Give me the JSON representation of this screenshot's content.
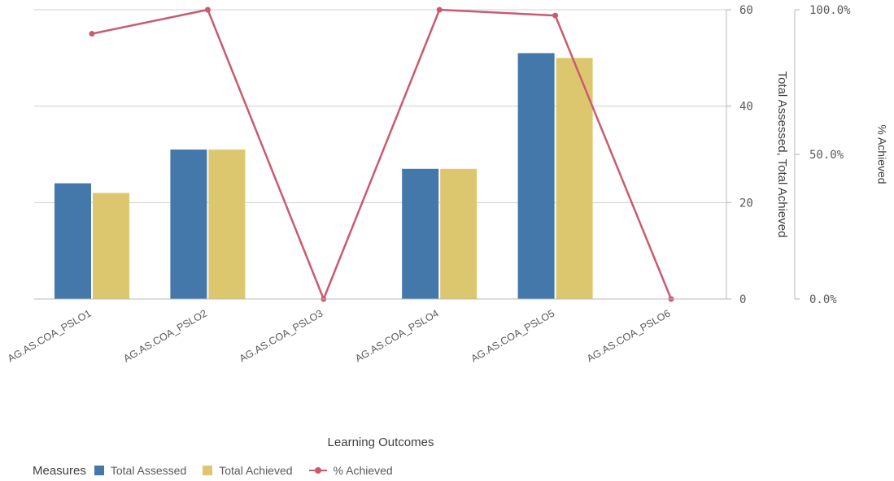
{
  "chart_data": {
    "type": "bar",
    "categories": [
      "AG.AS.COA_PSLO1",
      "AG.AS.COA_PSLO2",
      "AG.AS.COA_PSLO3",
      "AG.AS.COA_PSLO4",
      "AG.AS.COA_PSLO5",
      "AG.AS.COA_PSLO6"
    ],
    "series": [
      {
        "name": "Total Assessed",
        "kind": "bar",
        "axis": "left",
        "color": "#4477aa",
        "values": [
          24,
          31,
          0,
          27,
          51,
          0
        ]
      },
      {
        "name": "Total Achieved",
        "kind": "bar",
        "axis": "left",
        "color": "#ddc76e",
        "values": [
          22,
          31,
          0,
          27,
          50,
          0
        ]
      },
      {
        "name": "% Achieved",
        "kind": "line",
        "axis": "right",
        "color": "#c95b70",
        "values": [
          91.7,
          100,
          0,
          100,
          98.0,
          0
        ]
      }
    ],
    "xlabel": "Learning Outcomes",
    "ylabel": "Total Assessed, Total Achieved",
    "ylabel_right": "% Achieved",
    "ylim": [
      0,
      60
    ],
    "ylim_right": [
      0,
      100
    ],
    "yticks": [
      "0",
      "20",
      "40",
      "60"
    ],
    "yticks_right": [
      "0.0%",
      "50.0%",
      "100.0%"
    ],
    "grid": true,
    "legend_position": "bottom-left"
  },
  "legend": {
    "title": "Measures",
    "items": [
      {
        "label": "Total Assessed",
        "color": "#4477aa"
      },
      {
        "label": "Total Achieved",
        "color": "#ddc76e"
      },
      {
        "label": "% Achieved",
        "color": "#c95b70"
      }
    ]
  }
}
